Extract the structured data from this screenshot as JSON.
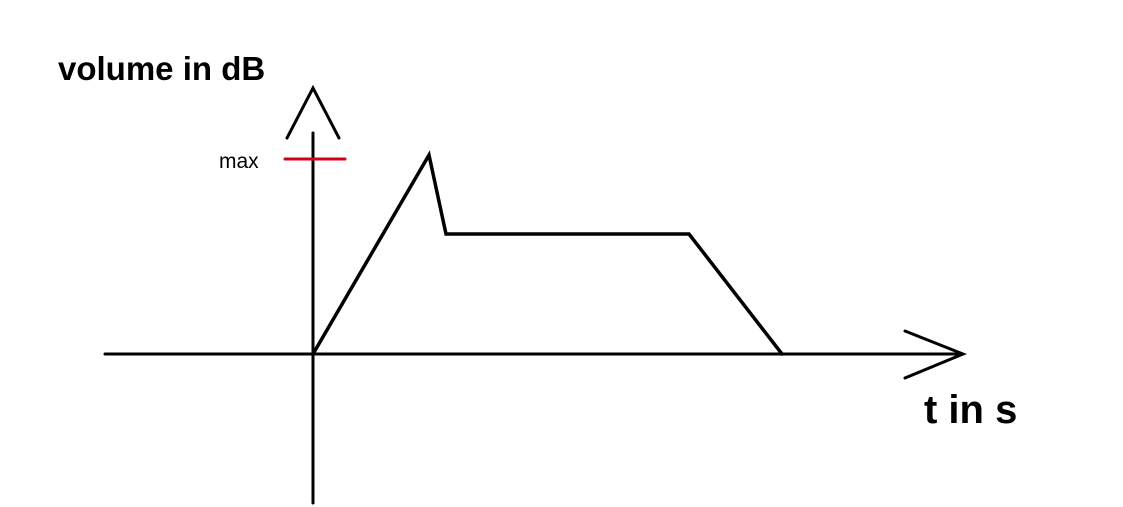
{
  "labels": {
    "y_axis": "volume in dB",
    "x_axis": "t in s",
    "max_tick": "max"
  },
  "colors": {
    "axis": "#000000",
    "envelope": "#000000",
    "max_marker": "#d0021b",
    "background": "#ffffff"
  }
}
